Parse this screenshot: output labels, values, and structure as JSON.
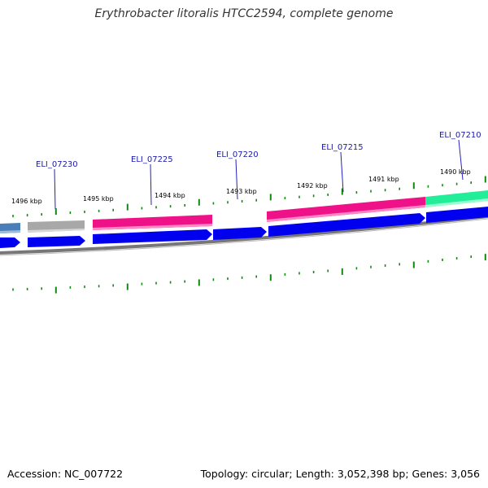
{
  "header": {
    "title": "Erythrobacter litoralis HTCC2594, complete genome"
  },
  "footer": {
    "accession": "Accession: NC_007722",
    "topology": "Topology: circular; Length: 3,052,398 bp; Genes: 3,056"
  },
  "colors": {
    "cds_forward_dark": "#0000ee",
    "cds_reverse_pink": "#ee1188",
    "cds_grey": "#a8a8a8",
    "cds_green": "#22ee99",
    "cds_steel": "#4a7eb8",
    "backbone": "#777777",
    "ticks": "#118811",
    "gene_label_line": "#2222bb"
  },
  "scale_labels": [
    "1496 kbp",
    "1495 kbp",
    "1494 kbp",
    "1493 kbp",
    "1492 kbp",
    "1491 kbp",
    "1490 kbp"
  ],
  "gene_labels": [
    "ELI_07230",
    "ELI_07225",
    "ELI_07220",
    "ELI_07215",
    "ELI_07210"
  ]
}
